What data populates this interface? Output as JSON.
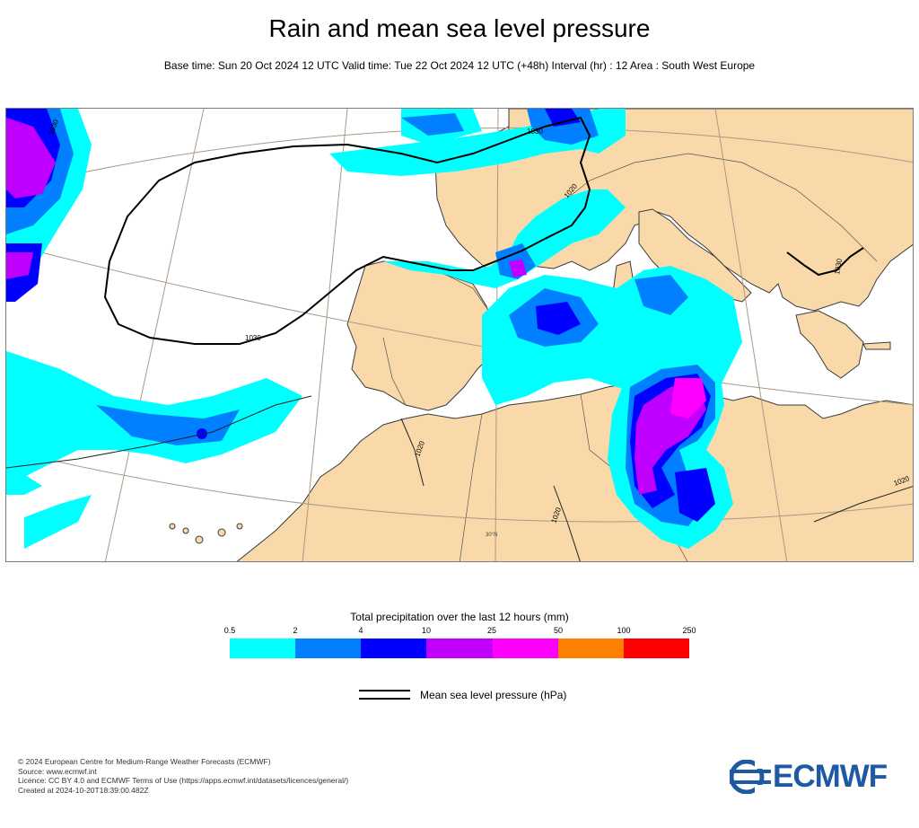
{
  "header": {
    "title": "Rain and mean sea level pressure",
    "subtitle": "Base time: Sun 20 Oct 2024 12 UTC Valid time: Tue 22 Oct 2024 12 UTC (+48h) Interval (hr) : 12 Area : South West Europe"
  },
  "map": {
    "isobar_labels": [
      "1030",
      "1030",
      "1030",
      "1030",
      "1020",
      "1020",
      "1020",
      "1020"
    ],
    "latitude_label": "30°N",
    "colors": {
      "sea": "#ffffff",
      "land": "#f9d9a9",
      "coast": "#3a3a3a",
      "graticule": "#a89a86",
      "isobar": "#000000"
    }
  },
  "legend": {
    "title": "Total precipitation over the last 12 hours (mm)",
    "ticks": [
      "0.5",
      "2",
      "4",
      "10",
      "25",
      "50",
      "100",
      "250"
    ],
    "colors": [
      "#00ffff",
      "#0080ff",
      "#0000ff",
      "#c000ff",
      "#ff00ff",
      "#ff8000",
      "#ff0000"
    ]
  },
  "pressure_key": {
    "label": "Mean sea level pressure (hPa)"
  },
  "footer": {
    "credits": [
      "© 2024 European Centre for Medium-Range Weather Forecasts (ECMWF)",
      "Source: www.ecmwf.int",
      "Licence: CC BY 4.0 and ECMWF Terms of Use (https://apps.ecmwf.int/datasets/licences/general/)",
      "Created at 2024-10-20T18:39:00.482Z"
    ],
    "logo_text": "ECMWF",
    "logo_color": "#1d5aa3"
  }
}
